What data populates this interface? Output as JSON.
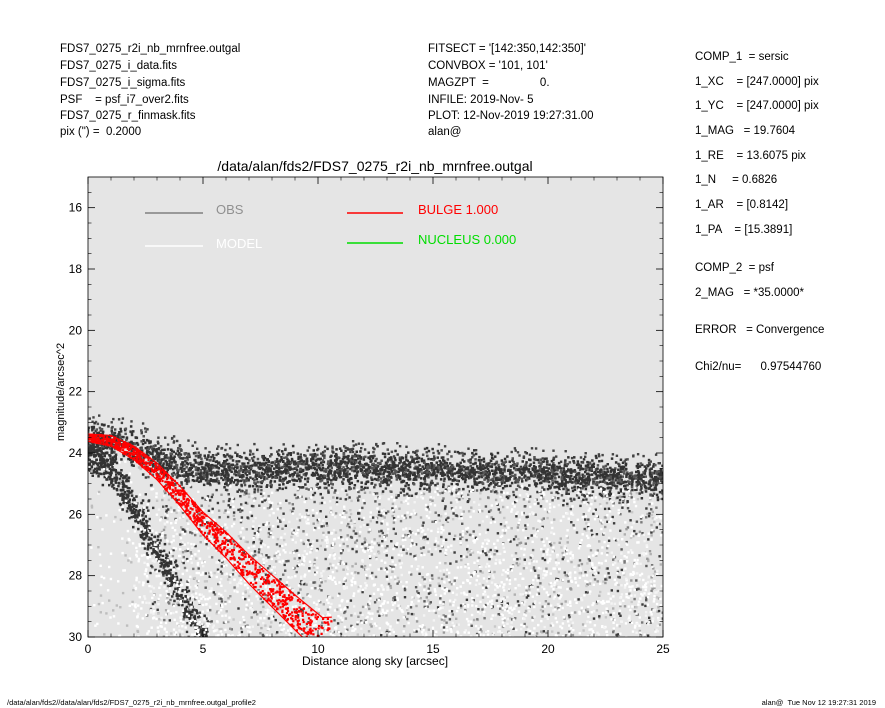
{
  "header_left": [
    "FDS7_0275_r2i_nb_mrnfree.outgal",
    "FDS7_0275_i_data.fits",
    "FDS7_0275_i_sigma.fits",
    "PSF    = psf_i7_over2.fits",
    "FDS7_0275_r_finmask.fits",
    "pix (\") =  0.2000"
  ],
  "header_mid": [
    "FITSECT = '[142:350,142:350]'",
    "CONVBOX = '101, 101'",
    "MAGZPT  =                0.",
    "INFILE: 2019-Nov- 5",
    "PLOT: 12-Nov-2019 19:27:31.00",
    "alan@"
  ],
  "params": [
    "COMP_1  = sersic",
    "1_XC    = [247.0000] pix",
    "1_YC    = [247.0000] pix",
    "1_MAG   = 19.7604",
    "1_RE    = 13.6075 pix",
    "1_N     = 0.6826",
    "1_AR    = [0.8142]",
    "1_PA    = [15.3891]",
    "COMP_2  = psf",
    "2_MAG   = *35.0000*",
    "ERROR   = Convergence",
    "Chi2/nu=      0.97544760"
  ],
  "footer_left": "/data/alan/fds2//data/alan/fds2/FDS7_0275_r2i_nb_mrnfree.outgal_profile2",
  "footer_right": "alan@  Tue Nov 12 19:27:31 2019",
  "colors": {
    "background": "#e5e5e5",
    "obs": "#808080",
    "obs_dark": "#404040",
    "model": "#ffffff",
    "bulge": "#ff0000",
    "nucleus": "#00dd00"
  },
  "chart_data": {
    "type": "scatter",
    "title": "/data/alan/fds2/FDS7_0275_r2i_nb_mrnfree.outgal",
    "xlabel": "Distance along sky [arcsec]",
    "ylabel": "magnitude/arcsec^2",
    "xlim": [
      0,
      25
    ],
    "ylim": [
      30,
      15
    ],
    "y_inverted": true,
    "xticks": [
      0,
      5,
      10,
      15,
      20,
      25
    ],
    "yticks": [
      16,
      18,
      20,
      22,
      24,
      26,
      28,
      30
    ],
    "legend": [
      {
        "label": "OBS",
        "color": "#909090"
      },
      {
        "label": "MODEL",
        "color": "#ffffff"
      },
      {
        "label": "BULGE  1.000",
        "color": "#ff0000"
      },
      {
        "label": "NUCLEUS  0.000",
        "color": "#00dd00"
      }
    ],
    "legend_position": "top",
    "series": [
      {
        "name": "OBS",
        "role": "sky-dominated band",
        "x_range": [
          0,
          25
        ],
        "y_profile": [
          [
            0,
            23.6
          ],
          [
            2,
            23.8
          ],
          [
            3.5,
            24.3
          ],
          [
            5,
            24.6
          ],
          [
            8,
            24.6
          ],
          [
            12,
            24.5
          ],
          [
            16,
            24.6
          ],
          [
            20,
            24.7
          ],
          [
            25,
            24.9
          ]
        ]
      },
      {
        "name": "OBS",
        "role": "lower branch",
        "y_profile": [
          [
            0,
            24.0
          ],
          [
            1,
            24.6
          ],
          [
            2,
            25.8
          ],
          [
            3,
            27.2
          ],
          [
            4,
            28.5
          ],
          [
            5,
            30.0
          ]
        ]
      },
      {
        "name": "MODEL",
        "role": "residual scatter",
        "x_range": [
          2,
          25
        ],
        "y_range": [
          25,
          30
        ]
      },
      {
        "name": "BULGE  1.000",
        "role": "sersic model band",
        "y_profile": [
          [
            0,
            23.5
          ],
          [
            1,
            23.6
          ],
          [
            2,
            24.0
          ],
          [
            3,
            24.6
          ],
          [
            4,
            25.4
          ],
          [
            5,
            26.3
          ],
          [
            6,
            27.0
          ],
          [
            7,
            27.8
          ],
          [
            8,
            28.5
          ],
          [
            9,
            29.2
          ],
          [
            10.2,
            30.0
          ]
        ]
      }
    ]
  }
}
